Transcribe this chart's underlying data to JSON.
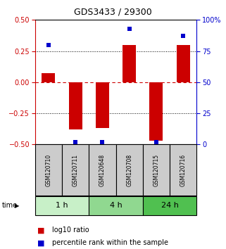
{
  "title": "GDS3433 / 29300",
  "samples": [
    "GSM120710",
    "GSM120711",
    "GSM120648",
    "GSM120708",
    "GSM120715",
    "GSM120716"
  ],
  "groups": [
    {
      "label": "1 h",
      "indices": [
        0,
        1
      ],
      "color": "#c8f0c8"
    },
    {
      "label": "4 h",
      "indices": [
        2,
        3
      ],
      "color": "#90d890"
    },
    {
      "label": "24 h",
      "indices": [
        4,
        5
      ],
      "color": "#50c050"
    }
  ],
  "log10_ratio": [
    0.07,
    -0.38,
    -0.37,
    0.3,
    -0.47,
    0.3
  ],
  "percentile_rank": [
    80,
    2,
    2,
    93,
    2,
    87
  ],
  "ylim_left": [
    -0.5,
    0.5
  ],
  "ylim_right": [
    0,
    100
  ],
  "yticks_left": [
    -0.5,
    -0.25,
    0,
    0.25,
    0.5
  ],
  "yticks_right": [
    0,
    25,
    50,
    75,
    100
  ],
  "bar_color": "#cc0000",
  "dot_color": "#0000cc",
  "zero_line_color": "#cc0000",
  "grid_color": "#000000",
  "title_color": "#000000",
  "left_axis_color": "#cc0000",
  "right_axis_color": "#0000cc",
  "bg_color": "#ffffff",
  "plot_bg_color": "#ffffff",
  "sample_box_color": "#cccccc",
  "bar_width": 0.5,
  "dot_size": 18
}
